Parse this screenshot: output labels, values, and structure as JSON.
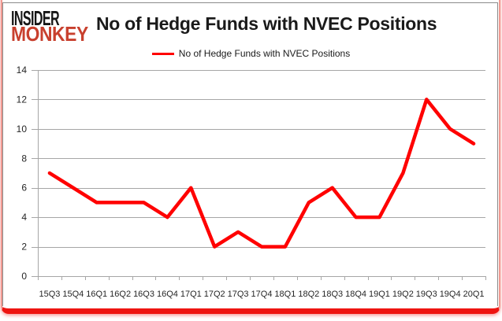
{
  "brand": {
    "line1": "INSIDER",
    "line2": "MONKEY",
    "insider_color": "#161616",
    "monkey_color": "#c8402e"
  },
  "header": {
    "title": "No of Hedge Funds with NVEC Positions"
  },
  "legend": {
    "label": "No of Hedge Funds with NVEC Positions",
    "line_color": "#ff0000"
  },
  "frame": {
    "outer_border_color": "#f09a92",
    "bottom_band_color": "#ee1511",
    "widget_border_color": "#8a8a8a"
  },
  "chart_data": {
    "type": "line",
    "title": "No of Hedge Funds with NVEC Positions",
    "categories": [
      "15Q3",
      "15Q4",
      "16Q1",
      "16Q2",
      "16Q3",
      "16Q4",
      "17Q1",
      "17Q2",
      "17Q3",
      "17Q4",
      "18Q1",
      "18Q2",
      "18Q3",
      "18Q4",
      "19Q1",
      "19Q2",
      "19Q3",
      "19Q4",
      "20Q1"
    ],
    "series": [
      {
        "name": "No of Hedge Funds with NVEC Positions",
        "color": "#ff0000",
        "values": [
          7,
          6,
          5,
          5,
          5,
          4,
          6,
          2,
          3,
          2,
          2,
          5,
          6,
          4,
          4,
          7,
          12,
          10,
          9
        ]
      }
    ],
    "xlabel": "",
    "ylabel": "",
    "ylim": [
      0,
      14
    ],
    "yticks": [
      0,
      2,
      4,
      6,
      8,
      10,
      12,
      14
    ],
    "grid": true,
    "grid_color": "#a6a6a6",
    "tick_label_color": "#262626",
    "legend_position": "top-center"
  }
}
